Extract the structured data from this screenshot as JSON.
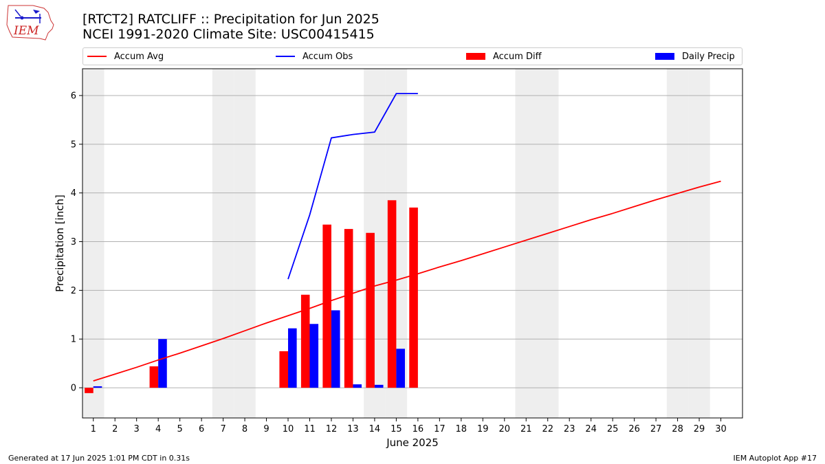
{
  "header": {
    "logo_text": "IEM",
    "title_line1": "[RTCT2] RATCLIFF :: Precipitation for Jun 2025",
    "title_line2": "NCEI 1991-2020 Climate Site: USC00415415"
  },
  "legend": [
    {
      "label": "Accum Avg",
      "color": "#ff0000",
      "kind": "line"
    },
    {
      "label": "Accum Obs",
      "color": "#0000ff",
      "kind": "line"
    },
    {
      "label": "Accum Diff",
      "color": "#ff0000",
      "kind": "box"
    },
    {
      "label": "Daily Precip",
      "color": "#0000ff",
      "kind": "box"
    }
  ],
  "footer": {
    "left": "Generated at 17 Jun 2025 1:01 PM CDT in 0.31s",
    "right": "IEM Autoplot App #17"
  },
  "chart_data": {
    "type": "bar",
    "xlabel": "June 2025",
    "ylabel": "Precipitation [inch]",
    "xlim": [
      0.5,
      31.0
    ],
    "ylim": [
      -0.62,
      6.55
    ],
    "yticks": [
      0,
      1,
      2,
      3,
      4,
      5,
      6
    ],
    "x": [
      1,
      2,
      3,
      4,
      5,
      6,
      7,
      8,
      9,
      10,
      11,
      12,
      13,
      14,
      15,
      16,
      17,
      18,
      19,
      20,
      21,
      22,
      23,
      24,
      25,
      26,
      27,
      28,
      29,
      30
    ],
    "weekend_days": [
      1,
      7,
      8,
      14,
      15,
      21,
      22,
      28,
      29
    ],
    "grid": "horizontal",
    "series": [
      {
        "name": "Accum Avg",
        "type": "line",
        "color": "#ff0000",
        "x": [
          1,
          2,
          3,
          4,
          5,
          6,
          7,
          8,
          9,
          10,
          11,
          12,
          13,
          14,
          15,
          16,
          17,
          18,
          19,
          20,
          21,
          22,
          23,
          24,
          25,
          26,
          27,
          28,
          29,
          30
        ],
        "values": [
          0.14,
          0.28,
          0.42,
          0.57,
          0.71,
          0.86,
          1.01,
          1.17,
          1.33,
          1.48,
          1.63,
          1.79,
          1.94,
          2.09,
          2.21,
          2.34,
          2.48,
          2.61,
          2.75,
          2.89,
          3.03,
          3.17,
          3.31,
          3.45,
          3.58,
          3.72,
          3.86,
          3.99,
          4.12,
          4.24
        ]
      },
      {
        "name": "Accum Obs",
        "type": "line",
        "color": "#0000ff",
        "x": [
          10,
          11,
          12,
          13,
          14,
          15,
          16
        ],
        "values": [
          2.23,
          3.55,
          5.13,
          5.2,
          5.25,
          6.04,
          6.04
        ]
      },
      {
        "name": "Accum Diff",
        "type": "bar",
        "color": "#ff0000",
        "x": [
          1,
          2,
          3,
          4,
          5,
          6,
          7,
          8,
          9,
          10,
          11,
          12,
          13,
          14,
          15,
          16
        ],
        "values": [
          -0.11,
          0,
          0,
          0.44,
          0,
          0,
          0,
          0,
          0,
          0.75,
          1.91,
          3.35,
          3.26,
          3.18,
          3.85,
          3.7
        ]
      },
      {
        "name": "Daily Precip",
        "type": "bar",
        "color": "#0000ff",
        "x": [
          1,
          2,
          3,
          4,
          5,
          6,
          7,
          8,
          9,
          10,
          11,
          12,
          13,
          14,
          15,
          16
        ],
        "values": [
          0.03,
          0,
          0,
          1.0,
          0,
          0,
          0,
          0,
          0,
          1.22,
          1.31,
          1.59,
          0.07,
          0.06,
          0.8,
          0
        ]
      }
    ]
  }
}
